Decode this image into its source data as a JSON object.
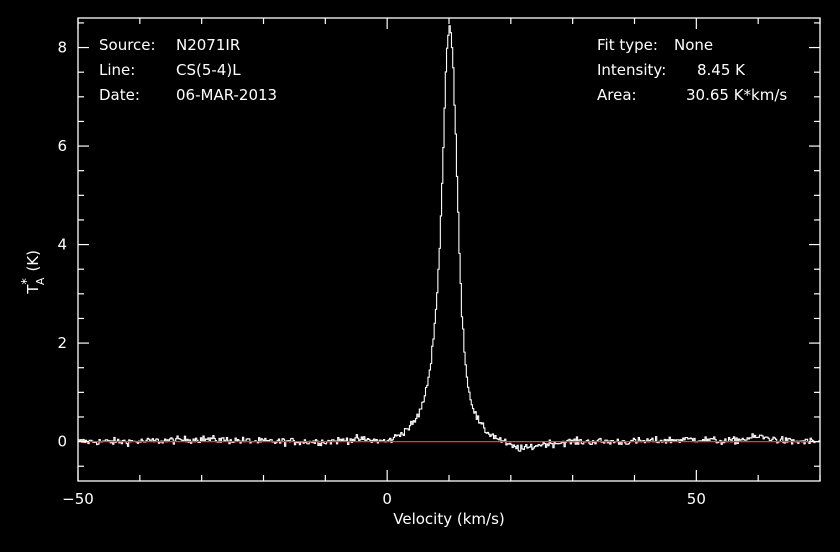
{
  "info": {
    "source_label": "Source:",
    "source_value": "N2071IR",
    "line_label": "Line:",
    "line_value": "CS(5-4)L",
    "date_label": "Date:",
    "date_value": "06-MAR-2013",
    "fit_type_label": "Fit type:",
    "fit_type_value": "None",
    "intensity_label": "Intensity:",
    "intensity_value": "8.45 K",
    "area_label": "Area:",
    "area_value": "30.65 K*km/s"
  },
  "colors": {
    "background": "#000000",
    "axes": "#ffffff",
    "spectrum": "#ffffff",
    "baseline": "#ff3333"
  },
  "chart_data": {
    "type": "line",
    "title": "",
    "xlabel": "Velocity (km/s)",
    "ylabel_main": "T",
    "ylabel_sup": "*",
    "ylabel_sub": "A",
    "ylabel_unit": "(K)",
    "xlim": [
      -50,
      70
    ],
    "ylim": [
      -0.8,
      8.6
    ],
    "xticks": [
      -50,
      0,
      50
    ],
    "xtick_labels": [
      "−50",
      "0",
      "50"
    ],
    "yticks": [
      0,
      2,
      4,
      6,
      8
    ],
    "ytick_labels": [
      "0",
      "2",
      "4",
      "6",
      "8"
    ],
    "grid": false,
    "style": "step",
    "baseline": {
      "y": 0,
      "x_range": [
        -50,
        70
      ]
    },
    "series": [
      {
        "x": [
          -50,
          -40,
          -30,
          -20,
          -10,
          -5,
          0,
          2,
          4,
          5,
          6,
          7,
          7.5,
          8,
          8.5,
          9,
          9.5,
          10,
          10.5,
          11,
          11.5,
          12,
          12.5,
          13,
          14,
          15,
          16,
          18,
          20,
          22,
          25,
          30,
          40,
          50,
          55,
          60,
          65,
          70
        ],
        "values": [
          0.0,
          0.0,
          0.05,
          0.0,
          0.0,
          0.05,
          0.0,
          0.15,
          0.35,
          0.55,
          0.9,
          1.6,
          2.3,
          3.0,
          4.2,
          6.0,
          7.9,
          8.45,
          7.9,
          6.2,
          4.2,
          2.6,
          1.7,
          1.1,
          0.6,
          0.35,
          0.2,
          0.05,
          -0.1,
          -0.15,
          -0.05,
          0.0,
          0.0,
          0.05,
          0.0,
          0.1,
          0.0,
          0.0
        ]
      }
    ]
  }
}
